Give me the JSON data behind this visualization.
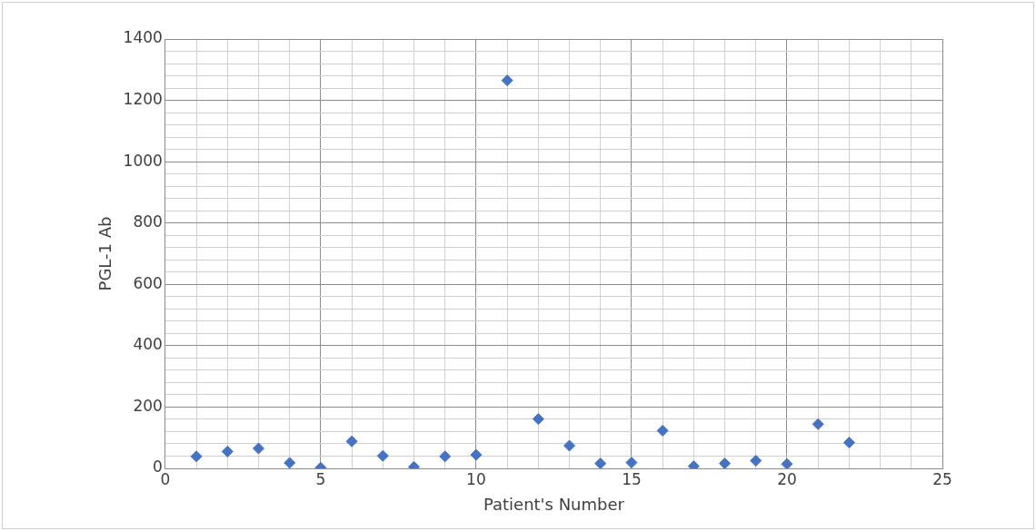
{
  "chart_data": {
    "type": "scatter",
    "xlabel": "Patient's Number",
    "ylabel": "PGL-1 Ab",
    "x": [
      1,
      2,
      3,
      4,
      5,
      6,
      7,
      8,
      9,
      10,
      11,
      12,
      13,
      14,
      15,
      16,
      17,
      18,
      19,
      20,
      21,
      22
    ],
    "series": [
      {
        "color": "#4472c4",
        "values": [
          39,
          55,
          65,
          18,
          2,
          88,
          41,
          5,
          39,
          44,
          1265,
          161,
          74,
          16,
          19,
          123,
          7,
          16,
          25,
          14,
          144,
          84
        ]
      }
    ],
    "xlim": [
      0,
      25
    ],
    "xticks": [
      0,
      {
        "value": 1,
        "label": null
      },
      {
        "value": 2,
        "label": null
      },
      {
        "value": 3,
        "label": null
      },
      {
        "value": 4,
        "label": null
      },
      5,
      {
        "value": 6,
        "label": null
      },
      {
        "value": 7,
        "label": null
      },
      {
        "value": 8,
        "label": null
      },
      {
        "value": 9,
        "label": null
      },
      10,
      {
        "value": 11,
        "label": null
      },
      {
        "value": 12,
        "label": null
      },
      {
        "value": 13,
        "label": null
      },
      {
        "value": 14,
        "label": null
      },
      15,
      {
        "value": 16,
        "label": null
      },
      {
        "value": 17,
        "label": null
      },
      {
        "value": 18,
        "label": null
      },
      {
        "value": 19,
        "label": null
      },
      20,
      {
        "value": 21,
        "label": null
      },
      {
        "value": 22,
        "label": null
      },
      {
        "value": 23,
        "label": null
      },
      {
        "value": 24,
        "label": null
      },
      25
    ],
    "ylim": [
      0,
      1400
    ],
    "yticks": [
      0,
      {
        "value": 40,
        "label": null
      },
      {
        "value": 80,
        "label": null
      },
      {
        "value": 120,
        "label": null
      },
      {
        "value": 160,
        "label": null
      },
      200,
      {
        "value": 240,
        "label": null
      },
      {
        "value": 280,
        "label": null
      },
      {
        "value": 320,
        "label": null
      },
      {
        "value": 360,
        "label": null
      },
      400,
      {
        "value": 440,
        "label": null
      },
      {
        "value": 480,
        "label": null
      },
      {
        "value": 520,
        "label": null
      },
      {
        "value": 560,
        "label": null
      },
      600,
      {
        "value": 640,
        "label": null
      },
      {
        "value": 680,
        "label": null
      },
      {
        "value": 720,
        "label": null
      },
      {
        "value": 760,
        "label": null
      },
      800,
      {
        "value": 840,
        "label": null
      },
      {
        "value": 880,
        "label": null
      },
      {
        "value": 920,
        "label": null
      },
      {
        "value": 960,
        "label": null
      },
      1000,
      {
        "value": 1040,
        "label": null
      },
      {
        "value": 1080,
        "label": null
      },
      {
        "value": 1120,
        "label": null
      },
      {
        "value": 1160,
        "label": null
      },
      1200,
      {
        "value": 1240,
        "label": null
      },
      {
        "value": 1280,
        "label": null
      },
      {
        "value": 1320,
        "label": null
      },
      {
        "value": 1360,
        "label": null
      },
      1400
    ],
    "grid": true,
    "marker": "diamond"
  }
}
